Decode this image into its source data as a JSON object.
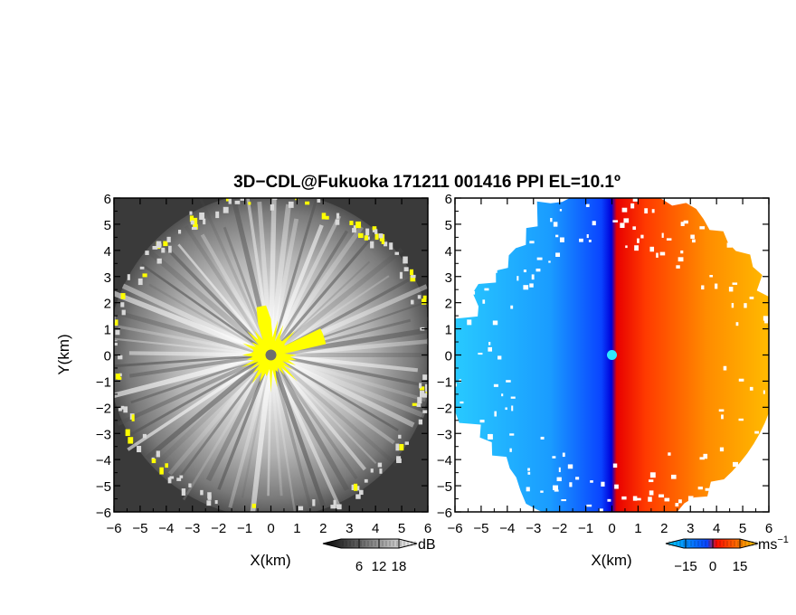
{
  "chart_data": [
    {
      "type": "heatmap",
      "panel": "reflectivity",
      "title": "3D−CDL@Fukuoka 171211 001416 PPI EL=10.1º",
      "xlabel": "X(km)",
      "ylabel": "Y(km)",
      "xlim": [
        -6,
        6
      ],
      "ylim": [
        -6,
        6
      ],
      "x_ticks": [
        "−6",
        "−5",
        "−4",
        "−3",
        "−2",
        "−1",
        "0",
        "1",
        "2",
        "3",
        "4",
        "5",
        "6"
      ],
      "y_ticks": [
        "6",
        "5",
        "4",
        "3",
        "2",
        "1",
        "0",
        "−1",
        "−2",
        "−3",
        "−4",
        "−5",
        "−6"
      ],
      "colorbar": {
        "unit": "dB",
        "ticks": [
          "6",
          "12",
          "18"
        ],
        "colors": [
          "#000000",
          "#ffffff"
        ],
        "highlight_color": "#ffff00"
      },
      "background_color": "#3a3a3a",
      "radar_site_color": "#6e6e6e"
    },
    {
      "type": "heatmap",
      "panel": "doppler-velocity",
      "xlabel": "X(km)",
      "xlim": [
        -6,
        6
      ],
      "ylim": [
        -6,
        6
      ],
      "x_ticks": [
        "−6",
        "−5",
        "−4",
        "−3",
        "−2",
        "−1",
        "0",
        "1",
        "2",
        "3",
        "4",
        "5",
        "6"
      ],
      "y_ticks": [
        "6",
        "5",
        "4",
        "3",
        "2",
        "1",
        "0",
        "−1",
        "−2",
        "−3",
        "−4",
        "−5",
        "−6"
      ],
      "colorbar": {
        "unit": "ms",
        "unit_exponent": "−1",
        "ticks": [
          "−15",
          "0",
          "15"
        ],
        "colors": [
          "#00d6ff",
          "#0a44ff",
          "#ff0a00",
          "#ffd400"
        ]
      },
      "radar_site_color": "#2ee8ff"
    }
  ]
}
